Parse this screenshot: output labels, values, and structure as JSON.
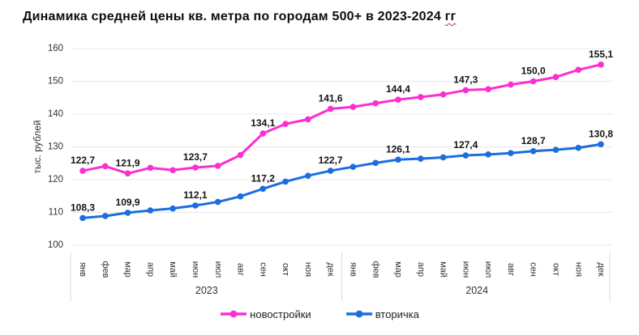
{
  "ui": {
    "title": {
      "main": "Динамика средней цены кв. метра по городам 500+ в 2023-2024",
      "tail": "гг"
    }
  },
  "chart_data": {
    "type": "line",
    "title": "Динамика средней цены кв. метра по городам 500+ в 2023-2024 гг",
    "ylabel": "тыс. рублей",
    "ylim": [
      100,
      160
    ],
    "ytick_step": 10,
    "grid": "horizontal",
    "legend_position": "bottom",
    "months": [
      "янв",
      "фев",
      "мар",
      "апр",
      "май",
      "июн",
      "июл",
      "авг",
      "сен",
      "окт",
      "ноя",
      "дек"
    ],
    "year_groups": [
      {
        "label": "2023"
      },
      {
        "label": "2024"
      }
    ],
    "series": [
      {
        "name": "новостройки",
        "color": "#FB2FD0",
        "values": [
          122.7,
          124.1,
          121.9,
          123.6,
          122.9,
          123.7,
          124.2,
          127.5,
          134.1,
          137.0,
          138.4,
          141.6,
          142.2,
          143.3,
          144.4,
          145.2,
          146.0,
          147.3,
          147.6,
          149.0,
          150.0,
          151.3,
          153.5,
          155.1
        ],
        "point_labels": [
          {
            "index": 0,
            "text": "122,7"
          },
          {
            "index": 2,
            "text": "121,9"
          },
          {
            "index": 5,
            "text": "123,7"
          },
          {
            "index": 8,
            "text": "134,1"
          },
          {
            "index": 11,
            "text": "141,6"
          },
          {
            "index": 14,
            "text": "144,4"
          },
          {
            "index": 17,
            "text": "147,3"
          },
          {
            "index": 20,
            "text": "150,0"
          },
          {
            "index": 23,
            "text": "155,1"
          }
        ]
      },
      {
        "name": "вторичка",
        "color": "#1B6EE0",
        "values": [
          108.3,
          108.9,
          109.9,
          110.6,
          111.2,
          112.1,
          113.2,
          114.9,
          117.2,
          119.4,
          121.2,
          122.7,
          123.9,
          125.1,
          126.1,
          126.4,
          126.8,
          127.4,
          127.7,
          128.1,
          128.7,
          129.1,
          129.7,
          130.8
        ],
        "point_labels": [
          {
            "index": 0,
            "text": "108,3"
          },
          {
            "index": 2,
            "text": "109,9"
          },
          {
            "index": 5,
            "text": "112,1"
          },
          {
            "index": 8,
            "text": "117,2"
          },
          {
            "index": 11,
            "text": "122,7"
          },
          {
            "index": 14,
            "text": "126,1"
          },
          {
            "index": 17,
            "text": "127,4"
          },
          {
            "index": 20,
            "text": "128,7"
          },
          {
            "index": 23,
            "text": "130,8"
          }
        ]
      }
    ],
    "colors": {
      "grid": "#e8e8e8",
      "divider": "#d8d8d8",
      "tick_text": "#333333",
      "data_label": "#141414"
    }
  }
}
